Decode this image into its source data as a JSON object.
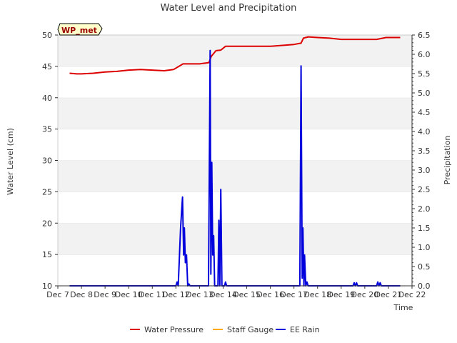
{
  "chart_data": {
    "type": "line",
    "title": "Water Level and Precipitation",
    "site_label": "WP_met",
    "xlabel": "Time",
    "ylabel_left": "Water Level (cm)",
    "ylabel_right": "Precipitation",
    "x_ticks": [
      "Dec 7",
      "Dec 8",
      "Dec 9",
      "Dec 10",
      "Dec 11",
      "Dec 12",
      "Dec 13",
      "Dec 14",
      "Dec 15",
      "Dec 16",
      "Dec 17",
      "Dec 18",
      "Dec 19",
      "Dec 20",
      "Dec 21",
      "Dec 22"
    ],
    "xlim_days": [
      7,
      22
    ],
    "ylim_left": [
      10,
      50
    ],
    "yticks_left": [
      10,
      15,
      20,
      25,
      30,
      35,
      40,
      45,
      50
    ],
    "ylim_right": [
      0,
      6.5
    ],
    "yticks_right": [
      "0.0",
      "0.5",
      "1.0",
      "1.5",
      "2.0",
      "2.5",
      "3.0",
      "3.5",
      "4.0",
      "4.5",
      "5.0",
      "5.5",
      "6.0",
      "6.5"
    ],
    "grid": "horizontal bands",
    "legend": "bottom-center",
    "series": [
      {
        "name": "Water Pressure",
        "color": "#dd0000",
        "axis": "left",
        "x": [
          7.5,
          7.8,
          8.0,
          8.5,
          9.0,
          9.5,
          10.0,
          10.5,
          11.0,
          11.5,
          11.9,
          12.3,
          12.5,
          13.0,
          13.4,
          13.5,
          13.7,
          13.9,
          14.1,
          14.5,
          15.0,
          16.0,
          17.0,
          17.3,
          17.4,
          17.6,
          18.0,
          18.5,
          19.0,
          20.0,
          20.5,
          20.9,
          21.5
        ],
        "y": [
          43.9,
          43.8,
          43.8,
          43.9,
          44.1,
          44.2,
          44.4,
          44.5,
          44.4,
          44.3,
          44.5,
          45.4,
          45.4,
          45.4,
          45.6,
          46.6,
          47.5,
          47.6,
          48.2,
          48.2,
          48.2,
          48.2,
          48.5,
          48.7,
          49.5,
          49.7,
          49.6,
          49.5,
          49.3,
          49.3,
          49.3,
          49.6,
          49.6
        ]
      },
      {
        "name": "Staff Gauge",
        "color": "#ffaa00",
        "axis": "left",
        "x": [],
        "y": []
      },
      {
        "name": "EE Rain",
        "color": "#0000dd",
        "axis": "right",
        "x": [
          7.5,
          12.0,
          12.05,
          12.1,
          12.2,
          12.28,
          12.33,
          12.36,
          12.4,
          12.45,
          12.5,
          12.55,
          12.6,
          13.38,
          13.45,
          13.48,
          13.52,
          13.56,
          13.6,
          13.64,
          13.68,
          13.73,
          13.78,
          13.82,
          13.86,
          13.9,
          13.95,
          14.0,
          14.06,
          14.1,
          14.15,
          14.2,
          14.3,
          17.25,
          17.3,
          17.35,
          17.38,
          17.42,
          17.45,
          17.5,
          17.55,
          17.6,
          19.5,
          19.55,
          19.6,
          19.65,
          19.7,
          20.5,
          20.55,
          20.6,
          20.65,
          20.7,
          21.5
        ],
        "y": [
          0,
          0,
          0.1,
          0,
          1.5,
          2.3,
          0.8,
          1.5,
          0.6,
          0.8,
          0,
          0.05,
          0,
          0,
          6.1,
          0.3,
          3.2,
          0.8,
          1.3,
          0,
          0,
          0,
          0,
          1.7,
          0,
          2.5,
          0,
          0,
          0,
          0.1,
          0,
          0,
          0,
          0,
          5.7,
          0.2,
          1.5,
          0,
          0.8,
          0,
          0.1,
          0,
          0,
          0.08,
          0,
          0.08,
          0,
          0,
          0.1,
          0,
          0.08,
          0,
          0
        ]
      }
    ]
  }
}
